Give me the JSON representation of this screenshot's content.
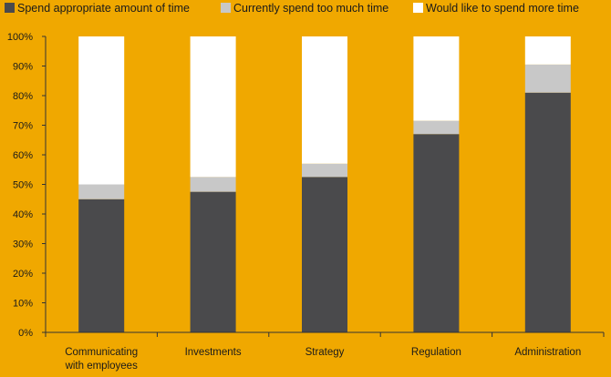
{
  "chart_data": {
    "type": "bar",
    "stacked": true,
    "percent": true,
    "categories": [
      [
        "Communicating",
        "with employees"
      ],
      [
        "Investments"
      ],
      [
        "Strategy"
      ],
      [
        "Regulation"
      ],
      [
        "Administration"
      ]
    ],
    "series": [
      {
        "name": "Spend appropriate amount of time",
        "color": "#4a4a4c",
        "values": [
          45,
          47.5,
          52.5,
          67,
          81
        ]
      },
      {
        "name": "Currently spend too much time",
        "color": "#c8c8c8",
        "values": [
          5,
          5,
          4.5,
          4.5,
          9.5
        ]
      },
      {
        "name": "Would like to spend more time",
        "color": "#ffffff",
        "values": [
          50,
          47.5,
          43,
          28.5,
          9.5
        ]
      }
    ],
    "y_ticks": [
      "0%",
      "10%",
      "20%",
      "30%",
      "40%",
      "50%",
      "60%",
      "70%",
      "80%",
      "90%",
      "100%"
    ],
    "ylim": [
      0,
      100
    ],
    "legend_position": "top",
    "colors": {
      "background": "#f0a800",
      "axis": "#333333"
    }
  }
}
